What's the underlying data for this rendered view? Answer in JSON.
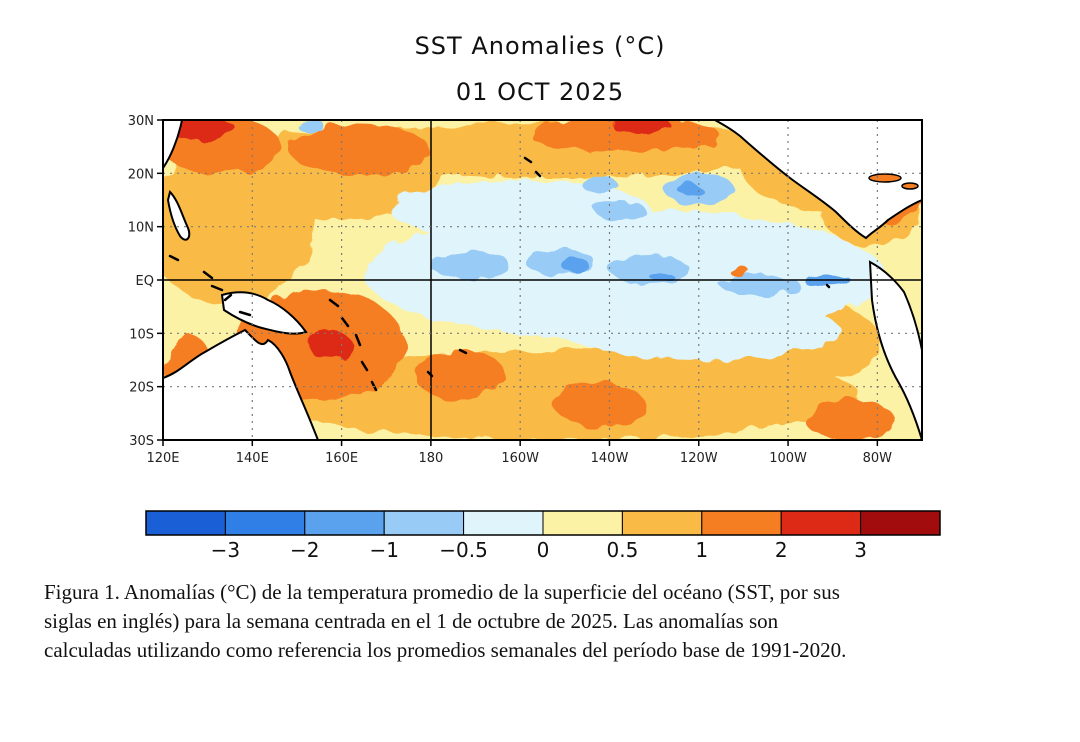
{
  "title": "SST Anomalies (°C)",
  "date": "01 OCT 2025",
  "map": {
    "lat_labels": [
      "30N",
      "20N",
      "10N",
      "EQ",
      "10S",
      "20S",
      "30S"
    ],
    "lon_labels": [
      "120E",
      "140E",
      "160E",
      "180",
      "160W",
      "140W",
      "120W",
      "100W",
      "80W"
    ]
  },
  "colorbar": {
    "colors": [
      "#1a5fd6",
      "#2f7fe6",
      "#5aa2ee",
      "#98cbf5",
      "#dff4fb",
      "#fbf2a6",
      "#f9bb45",
      "#f57d22",
      "#dc2a16",
      "#a20c0c"
    ],
    "labels": [
      "−3",
      "−2",
      "−1",
      "−0.5",
      "0",
      "0.5",
      "1",
      "2",
      "3"
    ]
  },
  "caption": [
    "Figura 1. Anomalías (°C) de la temperatura promedio de la superficie del océano (SST, por sus",
    "siglas en inglés) para la semana centrada en el 1 de octubre de 2025. Las anomalías son",
    "calculadas utilizando como referencia los promedios semanales del período base de 1991-2020."
  ]
}
